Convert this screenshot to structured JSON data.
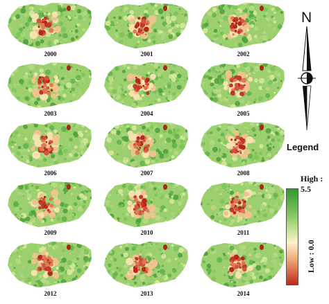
{
  "maps": [
    {
      "year": "2000"
    },
    {
      "year": "2001"
    },
    {
      "year": "2002"
    },
    {
      "year": "2003"
    },
    {
      "year": "2004"
    },
    {
      "year": "2005"
    },
    {
      "year": "2006"
    },
    {
      "year": "2007"
    },
    {
      "year": "2008"
    },
    {
      "year": "2009"
    },
    {
      "year": "2010"
    },
    {
      "year": "2011"
    },
    {
      "year": "2012"
    },
    {
      "year": "2013"
    },
    {
      "year": "2014"
    }
  ],
  "north_label": "N",
  "legend": {
    "title": "Legend",
    "high_label": "High : 5.5",
    "low_label": "Low : 0.0",
    "colors": {
      "high": "#2f9a2f",
      "mid": "#fdf1c8",
      "low": "#c02a1e"
    }
  }
}
